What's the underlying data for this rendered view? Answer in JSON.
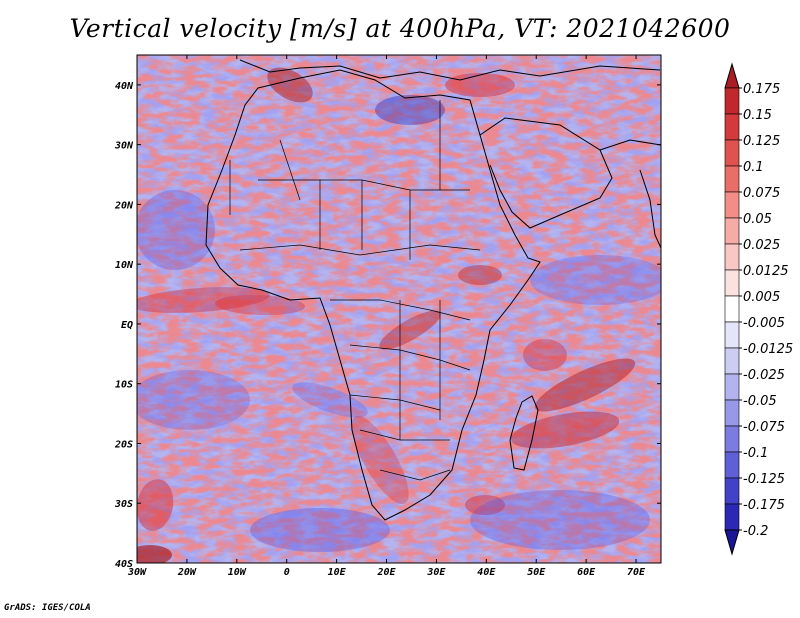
{
  "title": "Vertical velocity [m/s] at 400hPa, VT: 2021042600",
  "credit": "GrADS: IGES/COLA",
  "map": {
    "region": "Africa",
    "lon_range": [
      -30,
      75
    ],
    "lat_range": [
      -40,
      45
    ],
    "x_ticks": [
      "30W",
      "20W",
      "10W",
      "0",
      "10E",
      "20E",
      "30E",
      "40E",
      "50E",
      "60E",
      "70E"
    ],
    "y_ticks": [
      "40N",
      "30N",
      "20N",
      "10N",
      "EQ",
      "10S",
      "20S",
      "30S",
      "40S"
    ],
    "positive_color": "#d7303a",
    "negative_color": "#5a5ae6"
  },
  "colorbar": {
    "levels": [
      "0.175",
      "0.15",
      "0.125",
      "0.1",
      "0.075",
      "0.05",
      "0.025",
      "0.0125",
      "0.005",
      "-0.005",
      "-0.0125",
      "-0.025",
      "-0.05",
      "-0.075",
      "-0.1",
      "-0.125",
      "-0.175",
      "-0.2"
    ],
    "colors": [
      "#a81e24",
      "#c0282e",
      "#d23a3c",
      "#e0524e",
      "#ea6e68",
      "#f28e86",
      "#f6aca6",
      "#f9c8c4",
      "#fbe2df",
      "#ffffff",
      "#e4e4fa",
      "#cdcdf4",
      "#b3b3ee",
      "#9898e8",
      "#7c7ce0",
      "#6060d6",
      "#4242c8",
      "#2a28b4",
      "#1a1496"
    ]
  }
}
